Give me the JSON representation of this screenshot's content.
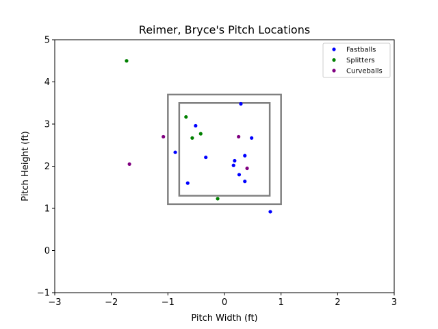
{
  "chart_data": {
    "type": "scatter",
    "title": "Reimer, Bryce's Pitch Locations",
    "xlabel": "Pitch Width (ft)",
    "ylabel": "Pitch Height (ft)",
    "xlim": [
      -3,
      3
    ],
    "ylim": [
      -1,
      5
    ],
    "xticks": [
      -3,
      -2,
      -1,
      0,
      1,
      2,
      3
    ],
    "yticks": [
      -1,
      0,
      1,
      2,
      3,
      4,
      5
    ],
    "grid": false,
    "legend_position": "top-right",
    "strike_zones": [
      {
        "x": [
          -1.0,
          1.0
        ],
        "y": [
          1.1,
          3.7
        ],
        "color": "#808080"
      },
      {
        "x": [
          -0.8,
          0.8
        ],
        "y": [
          1.3,
          3.5
        ],
        "color": "#808080"
      }
    ],
    "series": [
      {
        "name": "Fastballs",
        "color": "#0000ff",
        "points": [
          [
            0.29,
            3.48
          ],
          [
            -0.51,
            2.96
          ],
          [
            0.48,
            2.67
          ],
          [
            -0.87,
            2.33
          ],
          [
            -0.33,
            2.21
          ],
          [
            0.36,
            2.25
          ],
          [
            0.18,
            2.13
          ],
          [
            0.16,
            2.02
          ],
          [
            0.26,
            1.8
          ],
          [
            0.36,
            1.64
          ],
          [
            -0.65,
            1.6
          ],
          [
            0.81,
            0.92
          ]
        ]
      },
      {
        "name": "Splitters",
        "color": "#008000",
        "points": [
          [
            -1.73,
            4.5
          ],
          [
            -0.68,
            3.17
          ],
          [
            -0.42,
            2.77
          ],
          [
            -0.57,
            2.67
          ],
          [
            -0.12,
            1.23
          ]
        ]
      },
      {
        "name": "Curveballs",
        "color": "#800080",
        "points": [
          [
            -1.08,
            2.7
          ],
          [
            0.25,
            2.7
          ],
          [
            -1.68,
            2.05
          ],
          [
            0.4,
            1.95
          ]
        ]
      }
    ]
  }
}
